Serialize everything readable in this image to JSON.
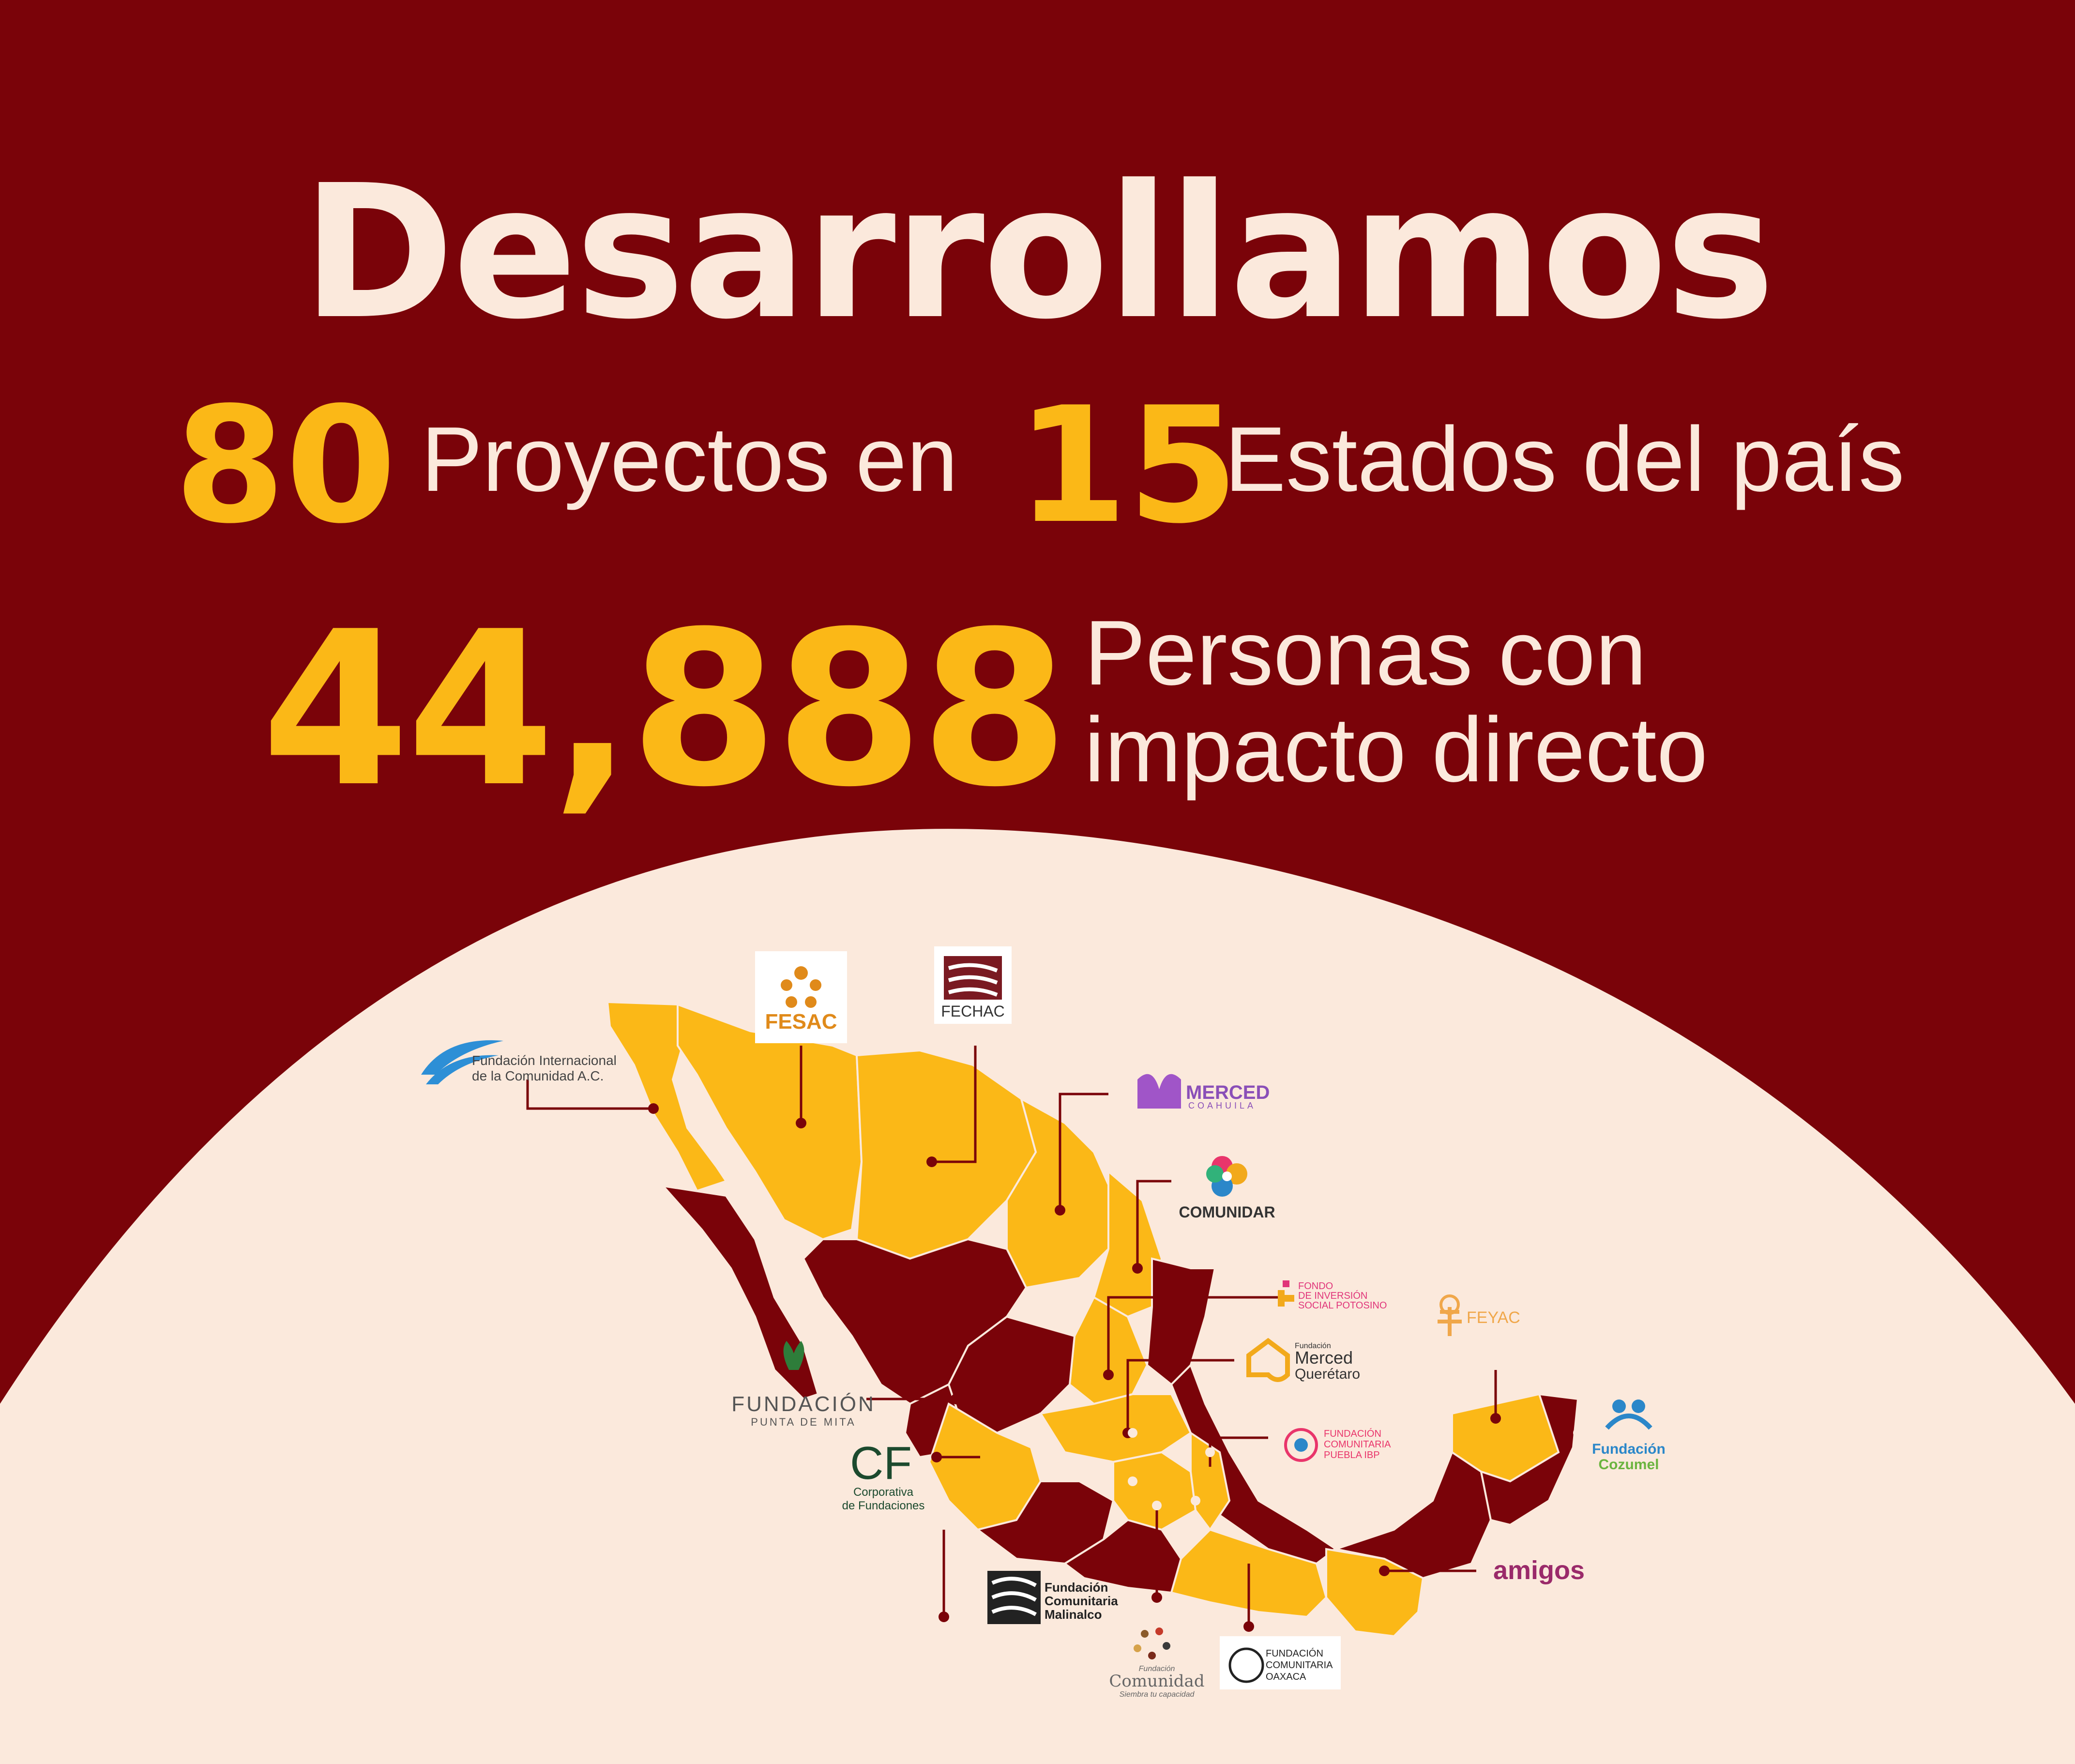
{
  "headline": "Desarrollamos",
  "stats": {
    "projects_value": "80",
    "projects_label": "Proyectos en",
    "states_value": "15",
    "states_label": "Estados del país",
    "people_value": "44,888",
    "people_label_line1": "Personas con",
    "people_label_line2": "impacto directo"
  },
  "colors": {
    "background": "#7a0309",
    "accent_yellow": "#fbb817",
    "cream": "#fbe9dc",
    "map_dark": "#7a0309"
  },
  "foundations": [
    {
      "name_line1": "Fundación Internacional",
      "name_line2": "de la Comunidad A.C."
    },
    {
      "name": "FESAC"
    },
    {
      "name": "FECHAC"
    },
    {
      "name": "MERCED",
      "sub": "COAHUILA"
    },
    {
      "name": "COMUNIDAR"
    },
    {
      "line1": "FONDO",
      "line2": "DE INVERSIÓN",
      "line3": "SOCIAL POTOSINO"
    },
    {
      "name": "FEYAC"
    },
    {
      "pre": "Fundación",
      "name": "Merced",
      "sub": "Querétaro"
    },
    {
      "line1": "FUNDACIÓN",
      "line2": "COMUNITARIA",
      "line3": "PUEBLA IBP"
    },
    {
      "name": "Fundación",
      "sub": "Cozumel"
    },
    {
      "name": "FUNDACIÓN",
      "sub": "PUNTA DE MITA"
    },
    {
      "name": "CF",
      "sub_line1": "Corporativa",
      "sub_line2": "de Fundaciones"
    },
    {
      "line1": "Fundación",
      "line2": "Comunitaria",
      "line3": "Malinalco"
    },
    {
      "pre": "Fundación",
      "name": "Comunidad",
      "sub": "Siembra tu capacidad"
    },
    {
      "line1": "FUNDACIÓN",
      "line2": "COMUNITARIA",
      "line3": "OAXACA"
    },
    {
      "name": "amigos"
    }
  ]
}
